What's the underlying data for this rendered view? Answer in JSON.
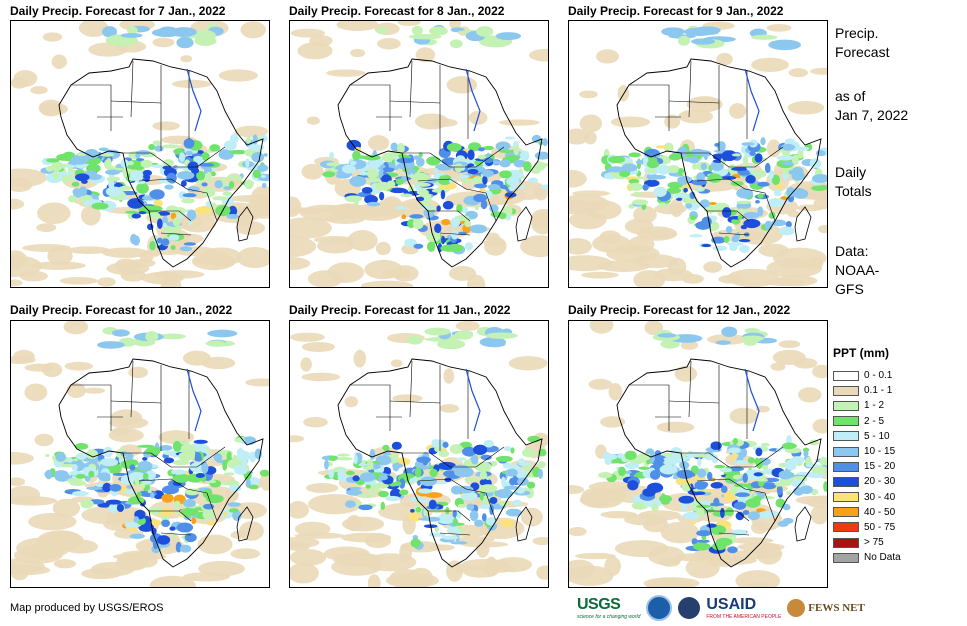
{
  "panels": [
    {
      "title": "Daily Precip. Forecast for 7 Jan., 2022"
    },
    {
      "title": "Daily Precip. Forecast for 8 Jan., 2022"
    },
    {
      "title": "Daily Precip. Forecast for 9 Jan., 2022"
    },
    {
      "title": "Daily Precip. Forecast for 10 Jan., 2022"
    },
    {
      "title": "Daily Precip. Forecast for 11 Jan., 2022"
    },
    {
      "title": "Daily Precip. Forecast for 12 Jan., 2022"
    }
  ],
  "side": {
    "heading_1": "Precip.",
    "heading_2": "Forecast",
    "asof_1": "as of",
    "asof_2": "Jan 7, 2022",
    "totals_1": "Daily",
    "totals_2": "Totals",
    "data_1": "Data:",
    "data_2": "NOAA-",
    "data_3": "GFS"
  },
  "legend": {
    "title": "PPT (mm)",
    "items": [
      {
        "label": "0 - 0.1",
        "color": "#ffffff"
      },
      {
        "label": "0.1 - 1",
        "color": "#ead9b8"
      },
      {
        "label": "1 - 2",
        "color": "#c4f2b4"
      },
      {
        "label": "2 - 5",
        "color": "#6fe36a"
      },
      {
        "label": "5 - 10",
        "color": "#bfeef7"
      },
      {
        "label": "10 - 15",
        "color": "#8cc7f0"
      },
      {
        "label": "15 - 20",
        "color": "#4f8fe8"
      },
      {
        "label": "20 - 30",
        "color": "#1b4fdc"
      },
      {
        "label": "30 - 40",
        "color": "#fbe27a"
      },
      {
        "label": "40 - 50",
        "color": "#f7a21a"
      },
      {
        "label": "50 - 75",
        "color": "#ee3a10"
      },
      {
        "label": "> 75",
        "color": "#a8140f"
      },
      {
        "label": "No Data",
        "color": "#a3a3a3"
      }
    ]
  },
  "credit": "Map produced by USGS/EROS",
  "logos": {
    "usgs": "USGS",
    "usgs_tagline": "science for a changing world",
    "usaid": "USAID",
    "usaid_tagline": "FROM THE AMERICAN PEOPLE",
    "fews": "FEWS NET"
  }
}
